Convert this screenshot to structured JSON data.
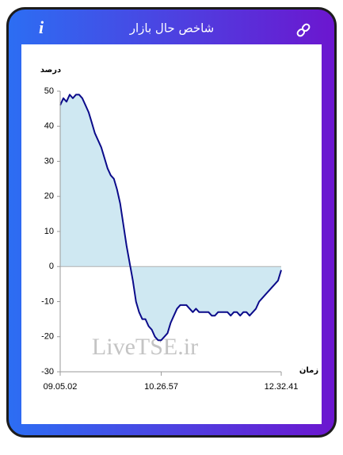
{
  "header": {
    "title": "شاخص حال بازار",
    "info_icon": "i"
  },
  "chart_data": {
    "type": "line",
    "y_label": "درصد",
    "x_label": "زمان",
    "watermark": "LiveTSE.ir",
    "x": [
      0,
      1,
      2,
      3,
      4,
      5,
      6,
      7,
      8,
      9,
      10,
      11,
      12,
      13,
      14,
      15,
      16,
      17,
      18,
      19,
      20,
      21,
      22,
      23,
      24,
      25,
      26,
      27,
      28,
      29,
      30,
      31,
      32,
      33,
      34,
      35,
      36,
      37,
      38,
      39,
      40,
      41,
      42,
      43,
      44,
      45,
      46,
      47,
      48,
      49,
      50,
      51,
      52,
      53,
      54,
      55,
      56,
      57,
      58,
      59,
      60,
      61,
      62,
      63,
      64,
      65,
      66,
      67,
      68,
      69,
      70
    ],
    "series": [
      {
        "color": "#0b0b8a",
        "fill": "#cfe8f2",
        "values": [
          46,
          48,
          47,
          49,
          48,
          49,
          49,
          48,
          46,
          44,
          41,
          38,
          36,
          34,
          31,
          28,
          26,
          25,
          22,
          18,
          12,
          6,
          1,
          -4,
          -10,
          -13,
          -15,
          -15,
          -17,
          -18,
          -20,
          -21,
          -21,
          -20,
          -19,
          -16,
          -14,
          -12,
          -11,
          -11,
          -11,
          -12,
          -13,
          -12,
          -13,
          -13,
          -13,
          -13,
          -14,
          -14,
          -13,
          -13,
          -13,
          -13,
          -14,
          -13,
          -13,
          -14,
          -13,
          -13,
          -14,
          -13,
          -12,
          -10,
          -9,
          -8,
          -7,
          -6,
          -5,
          -4,
          -1
        ]
      }
    ],
    "xlim": [
      0,
      70
    ],
    "xticks": [
      {
        "value": 0,
        "label": "09.05.02"
      },
      {
        "value": 32,
        "label": "10.26.57"
      },
      {
        "value": 70,
        "label": "12.32.41"
      }
    ],
    "ylim": [
      -30,
      50
    ],
    "yticks": [
      50,
      40,
      30,
      20,
      10,
      0,
      -10,
      -20,
      -30
    ],
    "grid": false
  }
}
